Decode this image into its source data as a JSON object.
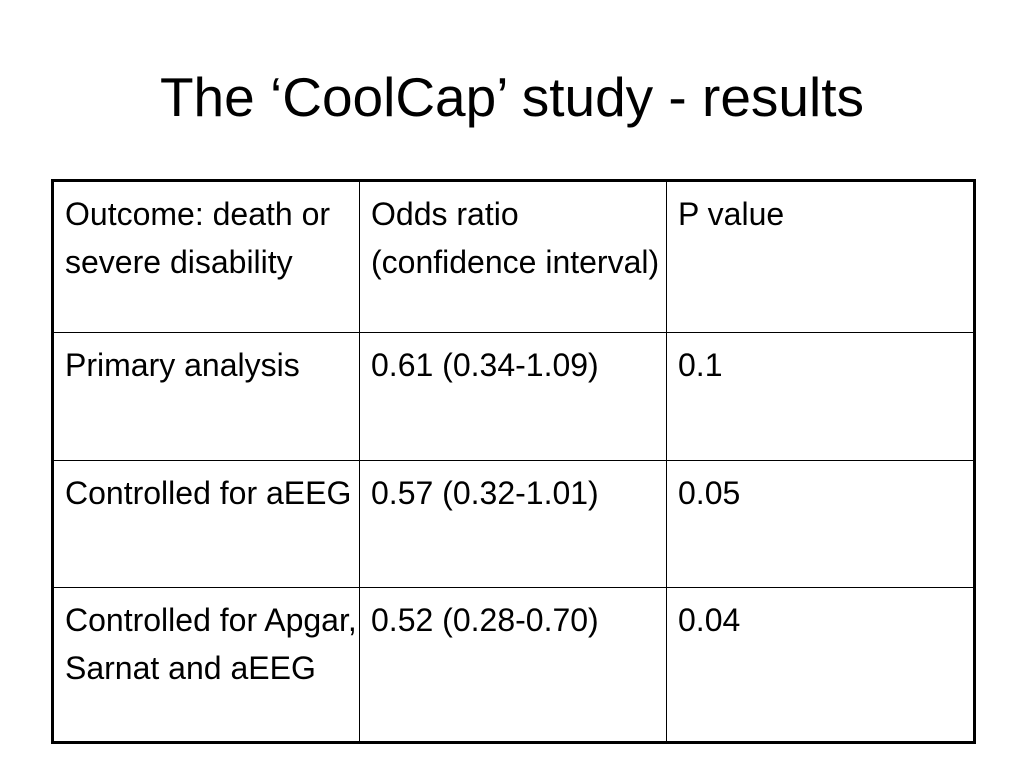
{
  "slide": {
    "title": "The ‘CoolCap’ study - results"
  },
  "table": {
    "header": [
      "Outcome: death or severe disability",
      "Odds ratio (confidence interval)",
      "P value"
    ],
    "rows": [
      [
        "Primary analysis",
        "0.61 (0.34-1.09)",
        "0.1"
      ],
      [
        "Controlled for aEEG",
        "0.57 (0.32-1.01)",
        "0.05"
      ],
      [
        "Controlled for Apgar, Sarnat and aEEG",
        "0.52 (0.28-0.70)",
        "0.04"
      ]
    ]
  }
}
